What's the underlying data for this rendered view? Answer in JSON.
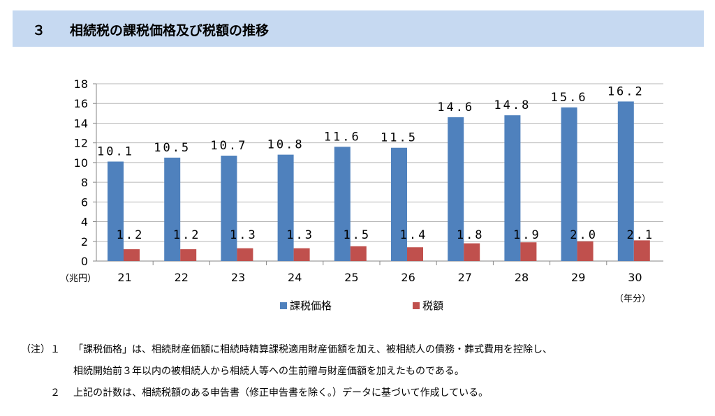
{
  "header": {
    "number": "３",
    "title": "相続税の課税価格及び税額の推移"
  },
  "chart_data": {
    "type": "bar",
    "categories": [
      "21",
      "22",
      "23",
      "24",
      "25",
      "26",
      "27",
      "28",
      "29",
      "30"
    ],
    "series": [
      {
        "name": "課税価格",
        "color": "#4f81bd",
        "values": [
          10.1,
          10.5,
          10.7,
          10.8,
          11.6,
          11.5,
          14.6,
          14.8,
          15.6,
          16.2
        ],
        "labels": [
          "10.1",
          "10.5",
          "10.7",
          "10.8",
          "11.6",
          "11.5",
          "14.6",
          "14.8",
          "15.6",
          "16.2"
        ]
      },
      {
        "name": "税額",
        "color": "#c0504d",
        "values": [
          1.2,
          1.2,
          1.3,
          1.3,
          1.5,
          1.4,
          1.8,
          1.9,
          2.0,
          2.1
        ],
        "labels": [
          "1.2",
          "1.2",
          "1.3",
          "1.3",
          "1.5",
          "1.4",
          "1.8",
          "1.9",
          "2.0",
          "2.1"
        ]
      }
    ],
    "ylim": [
      0,
      18
    ],
    "yticks": [
      "0",
      "2",
      "4",
      "6",
      "8",
      "10",
      "12",
      "14",
      "16",
      "18"
    ],
    "ylabel": "（兆円）",
    "xlabel": "（年分）",
    "grid": true,
    "legend": "bottom"
  },
  "notes": {
    "prefix": "（注）",
    "items": [
      {
        "num": "１",
        "lines": [
          "「課税価格」は、相続財産価額に相続時精算課税適用財産価額を加え、被相続人の債務・葬式費用を控除し、",
          "相続開始前３年以内の被相続人から相続人等への生前贈与財産価額を加えたものである。"
        ]
      },
      {
        "num": "２",
        "lines": [
          "上記の計数は、相続税額のある申告書（修正申告書を除く。）データに基づいて作成している。"
        ]
      }
    ]
  }
}
